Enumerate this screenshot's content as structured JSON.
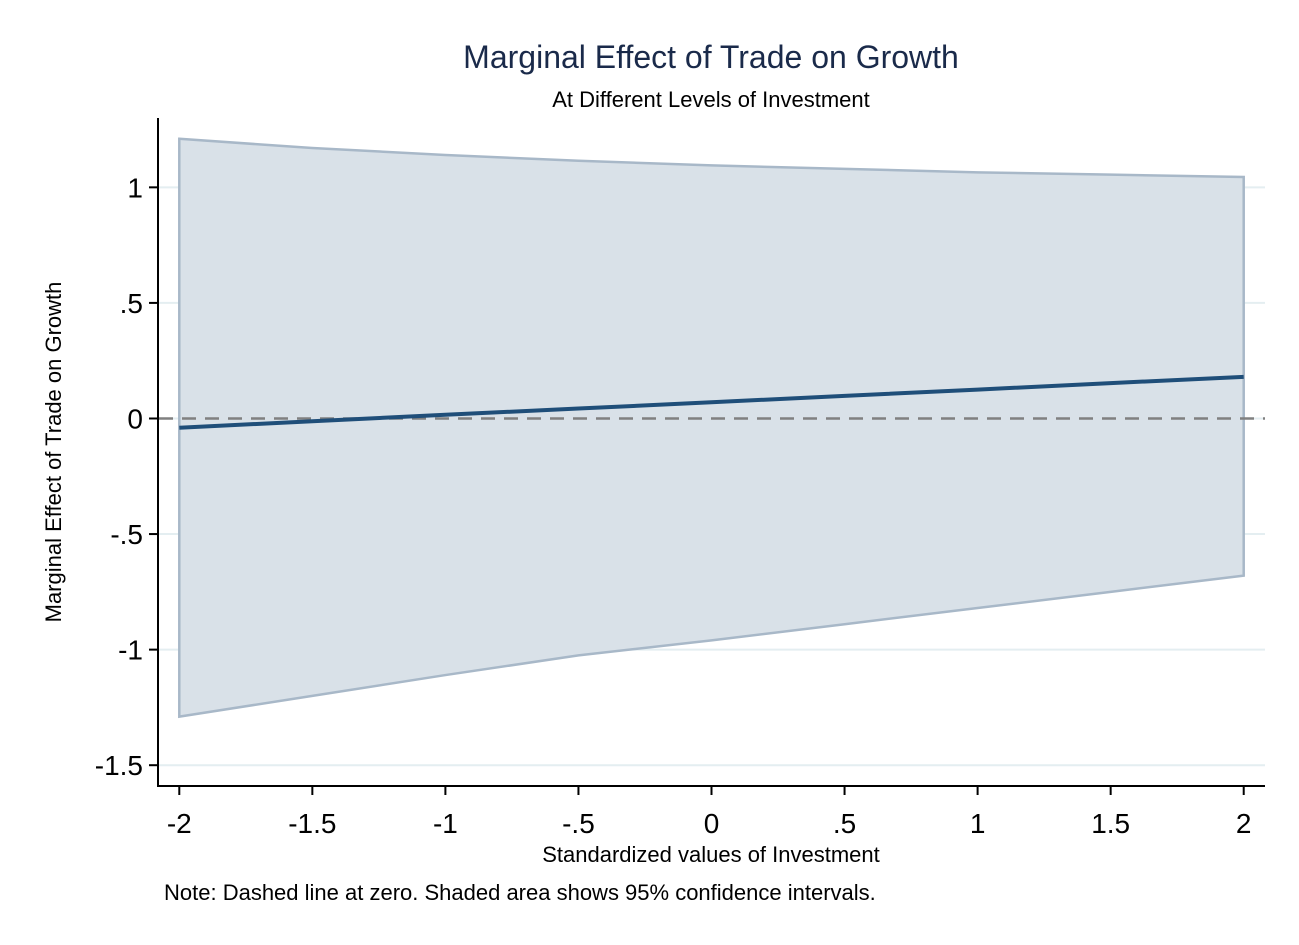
{
  "chart_data": {
    "type": "line",
    "title": "Marginal Effect of Trade on Growth",
    "subtitle": "At Different Levels of Investment",
    "xlabel": "Standardized values of Investment",
    "ylabel": "Marginal Effect of Trade on Growth",
    "note": "Note: Dashed line at zero. Shaded area shows 95% confidence intervals.",
    "xlim": [
      -2.08,
      2.08
    ],
    "ylim": [
      -1.59,
      1.3
    ],
    "xticks": [
      {
        "value": -2,
        "label": "-2"
      },
      {
        "value": -1.5,
        "label": "-1.5"
      },
      {
        "value": -1,
        "label": "-1"
      },
      {
        "value": -0.5,
        "label": "-.5"
      },
      {
        "value": 0,
        "label": "0"
      },
      {
        "value": 0.5,
        "label": ".5"
      },
      {
        "value": 1,
        "label": "1"
      },
      {
        "value": 1.5,
        "label": "1.5"
      },
      {
        "value": 2,
        "label": "2"
      }
    ],
    "yticks": [
      {
        "value": 1,
        "label": "1"
      },
      {
        "value": 0.5,
        "label": ".5"
      },
      {
        "value": 0,
        "label": "0"
      },
      {
        "value": -0.5,
        "label": "-.5"
      },
      {
        "value": -1,
        "label": "-1"
      },
      {
        "value": -1.5,
        "label": "-1.5"
      }
    ],
    "grid": "horizontal",
    "reference_line": {
      "y": 0,
      "style": "dashed"
    },
    "x": [
      -2,
      -1.5,
      -1,
      -0.5,
      0,
      0.5,
      1,
      1.5,
      2
    ],
    "series": [
      {
        "values": [
          -0.04,
          -0.012,
          0.016,
          0.043,
          0.07,
          0.098,
          0.125,
          0.153,
          0.18
        ]
      },
      {
        "values": [
          1.21,
          1.17,
          1.14,
          1.115,
          1.095,
          1.08,
          1.065,
          1.055,
          1.045
        ]
      },
      {
        "values": [
          -1.29,
          -1.2,
          -1.11,
          -1.025,
          -0.96,
          -0.89,
          -0.82,
          -0.75,
          -0.68
        ]
      }
    ],
    "colors": {
      "line": "#1f4e79",
      "band_fill": "#d9e1e8",
      "band_edge": "#a8b8c8",
      "title": "#1a2a4a",
      "grid": "#e4eef1",
      "reference": "#808080"
    }
  }
}
